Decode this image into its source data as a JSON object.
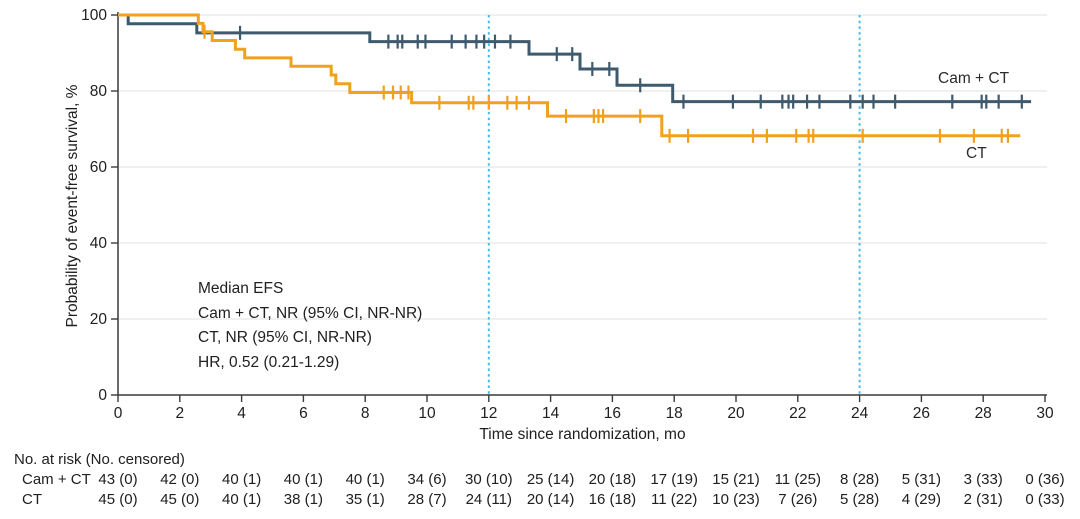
{
  "figure_type": "kaplan-meier-survival-plot",
  "colors": {
    "cam_ct_line": "#3E5A6C",
    "ct_line": "#F0A11D",
    "reference_line": "#45BCE8",
    "gridline": "#E8E8E8",
    "axis": "#3A3A3A",
    "text": "#202020"
  },
  "chart_data": {
    "type": "line",
    "subtype": "kaplan-meier-step",
    "xlabel": "Time since randomization, mo",
    "ylabel": "Probability of event-free survival, %",
    "xlim": [
      0,
      30
    ],
    "ylim": [
      0,
      100
    ],
    "x_ticks": [
      0,
      2,
      4,
      6,
      8,
      10,
      12,
      14,
      16,
      18,
      20,
      22,
      24,
      26,
      28,
      30
    ],
    "y_ticks": [
      0,
      20,
      40,
      60,
      80,
      100
    ],
    "grid": "horizontal-light",
    "reference_lines_x": [
      12,
      24
    ],
    "annotation": [
      "Median EFS",
      "Cam + CT, NR (95% CI, NR-NR)",
      "CT, NR (95% CI, NR-NR)",
      "HR, 0.52 (0.21-1.29)"
    ],
    "series": [
      {
        "name": "Cam + CT",
        "color": "#3E5A6C",
        "steps": [
          [
            0,
            100
          ],
          [
            0.33,
            97.7
          ],
          [
            2.55,
            95.3
          ],
          [
            8.15,
            93.0
          ],
          [
            13.3,
            89.7
          ],
          [
            14.95,
            85.8
          ],
          [
            16.15,
            81.5
          ],
          [
            17.95,
            77.2
          ]
        ],
        "end_x": 29.55,
        "censor_marks": [
          3.95,
          8.75,
          9.05,
          9.2,
          9.7,
          9.95,
          10.8,
          11.25,
          11.6,
          11.85,
          12.2,
          12.7,
          14.2,
          14.7,
          15.35,
          15.9,
          16.9,
          18.3,
          19.9,
          20.8,
          21.5,
          21.7,
          21.85,
          22.3,
          22.7,
          23.7,
          24.1,
          24.45,
          25.15,
          27.0,
          27.95,
          28.1,
          28.5,
          29.25
        ]
      },
      {
        "name": "CT",
        "color": "#F0A11D",
        "steps": [
          [
            0,
            100
          ],
          [
            2.6,
            97.8
          ],
          [
            2.75,
            95.6
          ],
          [
            3.05,
            93.3
          ],
          [
            3.8,
            91.0
          ],
          [
            4.1,
            88.7
          ],
          [
            5.6,
            86.5
          ],
          [
            6.9,
            84.2
          ],
          [
            7.05,
            81.9
          ],
          [
            7.5,
            79.6
          ],
          [
            9.5,
            76.9
          ],
          [
            13.9,
            73.4
          ],
          [
            17.6,
            68.2
          ]
        ],
        "end_x": 29.2,
        "censor_marks": [
          2.8,
          8.6,
          8.9,
          9.15,
          9.4,
          10.4,
          11.35,
          11.5,
          12.0,
          12.6,
          12.9,
          13.3,
          14.5,
          15.4,
          15.55,
          15.7,
          16.9,
          17.85,
          18.45,
          20.55,
          21.0,
          21.95,
          22.35,
          22.5,
          24.1,
          26.6,
          27.7,
          28.6,
          28.8
        ]
      }
    ]
  },
  "risk_table": {
    "title": "No. at risk (No. censored)",
    "time_points": [
      0,
      2,
      4,
      6,
      8,
      10,
      12,
      14,
      16,
      18,
      20,
      22,
      24,
      26,
      28,
      30
    ],
    "rows": [
      {
        "label": "Cam + CT",
        "values": [
          "43 (0)",
          "42 (0)",
          "40 (1)",
          "40 (1)",
          "40 (1)",
          "34 (6)",
          "30 (10)",
          "25 (14)",
          "20 (18)",
          "17 (19)",
          "15 (21)",
          "11 (25)",
          "8 (28)",
          "5 (31)",
          "3 (33)",
          "0 (36)"
        ]
      },
      {
        "label": "CT",
        "values": [
          "45 (0)",
          "45 (0)",
          "40 (1)",
          "38 (1)",
          "35 (1)",
          "28 (7)",
          "24 (11)",
          "20 (14)",
          "16 (18)",
          "11 (22)",
          "10 (23)",
          "7 (26)",
          "5 (28)",
          "4 (29)",
          "2 (31)",
          "0 (33)"
        ]
      }
    ]
  }
}
